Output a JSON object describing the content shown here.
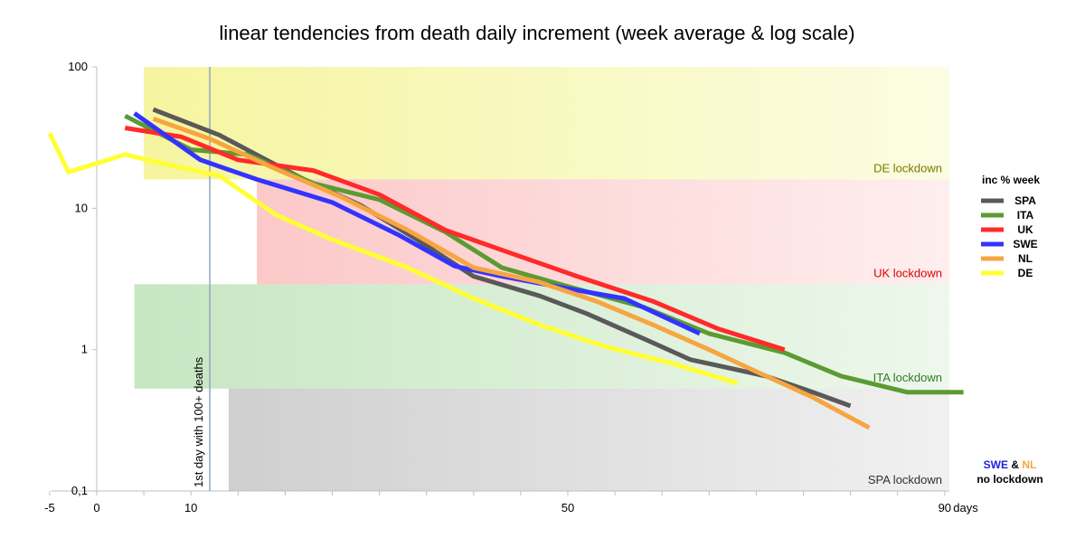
{
  "chart_data": {
    "type": "line",
    "title": "linear tendencies from death daily increment (week average & log scale)",
    "xlabel": "days",
    "ylabel": "",
    "xlim": [
      -5,
      92
    ],
    "ylim": [
      0.1,
      100
    ],
    "y_scale": "log",
    "grid": false,
    "x_ticks": [
      -5,
      0,
      10,
      50,
      90
    ],
    "y_ticks": [
      {
        "value": 100,
        "label": "100"
      },
      {
        "value": 10,
        "label": "10"
      },
      {
        "value": 1,
        "label": "1"
      },
      {
        "value": 0.1,
        "label": "0,1"
      }
    ],
    "legend": {
      "title": "inc % week",
      "position": "right"
    },
    "series": [
      {
        "name": "SPA",
        "color": "#595959",
        "x": [
          6,
          13,
          18,
          22,
          28,
          34,
          40,
          47,
          52,
          58,
          63,
          68,
          71,
          76,
          80
        ],
        "y": [
          50,
          33,
          22,
          16,
          10.5,
          6,
          3.3,
          2.4,
          1.8,
          1.2,
          0.85,
          0.72,
          0.65,
          0.5,
          0.4
        ]
      },
      {
        "name": "ITA",
        "color": "#5b9b32",
        "x": [
          3,
          10,
          16,
          23,
          30,
          37,
          43,
          50,
          58,
          65,
          73,
          79,
          86,
          92
        ],
        "y": [
          45,
          26,
          24,
          15,
          11.5,
          6.8,
          3.8,
          2.8,
          2.0,
          1.3,
          0.95,
          0.65,
          0.5,
          0.5
        ]
      },
      {
        "name": "UK",
        "color": "#ff2a2a",
        "x": [
          3,
          9,
          15,
          23,
          30,
          37,
          44,
          51,
          59,
          66,
          73
        ],
        "y": [
          37,
          32,
          22,
          18.5,
          12.5,
          7,
          4.8,
          3.3,
          2.2,
          1.4,
          1.0
        ]
      },
      {
        "name": "SWE",
        "color": "#3333ff",
        "x": [
          4,
          11,
          17,
          25,
          32,
          38,
          43,
          50,
          56,
          64
        ],
        "y": [
          47,
          22,
          16,
          11,
          6.5,
          3.9,
          3.3,
          2.7,
          2.3,
          1.3
        ]
      },
      {
        "name": "NL",
        "color": "#f7a540",
        "x": [
          6,
          12,
          19,
          26,
          33,
          40,
          47,
          53,
          59,
          65,
          70,
          76,
          82
        ],
        "y": [
          43,
          31,
          19,
          12,
          7,
          3.8,
          3.0,
          2.2,
          1.5,
          1.0,
          0.7,
          0.46,
          0.28
        ]
      },
      {
        "name": "DE",
        "color": "#ffff33",
        "x": [
          -5,
          -3,
          3,
          8,
          13,
          19,
          25,
          33,
          40,
          47,
          54,
          61,
          68
        ],
        "y": [
          34,
          18,
          24,
          20,
          17,
          9,
          6,
          3.8,
          2.3,
          1.5,
          1.05,
          0.8,
          0.58
        ]
      }
    ],
    "lockdown_bands": [
      {
        "label": "DE lockdown",
        "x_start": 5,
        "x_end": 92,
        "y_low": 16,
        "y_high": 100,
        "fill": "#f5f5a0",
        "text_color": "#7a7a00"
      },
      {
        "label": "UK lockdown",
        "x_start": 17,
        "x_end": 92,
        "y_low": 2.9,
        "y_high": 16,
        "fill": "#fcc8c8",
        "text_color": "#e00000"
      },
      {
        "label": "ITA lockdown",
        "x_start": 4,
        "x_end": 92,
        "y_low": 0.53,
        "y_high": 2.9,
        "fill": "#c6e6c1",
        "text_color": "#2e7d20"
      },
      {
        "label": "SPA lockdown",
        "x_start": 14,
        "x_end": 92,
        "y_low": 0.1,
        "y_high": 0.53,
        "fill": "#cfcfcf",
        "text_color": "#303030"
      }
    ],
    "annotations": [
      {
        "text": "1st day with 100+ deaths",
        "x": 12
      }
    ],
    "note": {
      "swe": "SWE",
      "amp": "&",
      "nl": "NL",
      "line2": "no lockdown",
      "swe_color": "#2222dd",
      "nl_color": "#f7a540"
    }
  }
}
